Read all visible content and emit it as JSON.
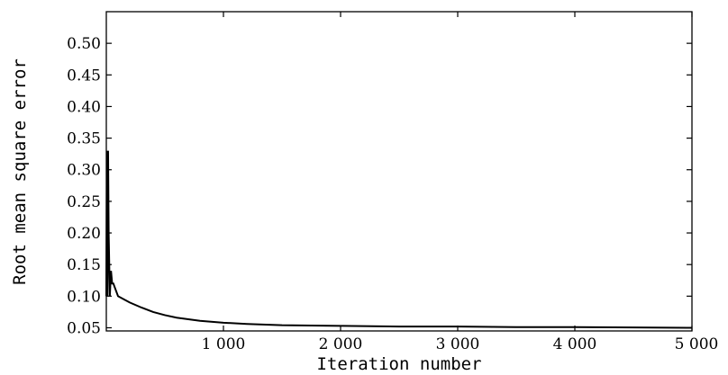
{
  "chart_data": {
    "type": "line",
    "title": "",
    "xlabel": "Iteration number",
    "ylabel": "Root mean square error",
    "xlim": [
      0,
      5000
    ],
    "ylim": [
      0.045,
      0.55
    ],
    "xticks": [
      1000,
      2000,
      3000,
      4000,
      5000
    ],
    "xtick_labels": [
      "1 000",
      "2 000",
      "3 000",
      "4 000",
      "5 000"
    ],
    "yticks": [
      0.05,
      0.1,
      0.15,
      0.2,
      0.25,
      0.3,
      0.35,
      0.4,
      0.45,
      0.5
    ],
    "ytick_labels": [
      "0.05",
      "0.10",
      "0.15",
      "0.20",
      "0.25",
      "0.30",
      "0.35",
      "0.40",
      "0.45",
      "0.50"
    ],
    "grid": false,
    "legend": "none",
    "line_color": "#000000",
    "series": [
      {
        "x": [
          0,
          5,
          10,
          15,
          20,
          25,
          30,
          40,
          50,
          60,
          70,
          80,
          90,
          100,
          150,
          200,
          300,
          400,
          500,
          600,
          800,
          1000,
          1200,
          1500,
          2000,
          2500,
          3000,
          3500,
          4000,
          4500,
          5000
        ],
        "y": [
          0.1,
          0.33,
          0.1,
          0.33,
          0.2,
          0.15,
          0.1,
          0.14,
          0.12,
          0.12,
          0.115,
          0.11,
          0.105,
          0.1,
          0.095,
          0.09,
          0.082,
          0.075,
          0.07,
          0.066,
          0.061,
          0.058,
          0.056,
          0.054,
          0.053,
          0.052,
          0.052,
          0.051,
          0.051,
          0.0505,
          0.05
        ]
      }
    ]
  }
}
